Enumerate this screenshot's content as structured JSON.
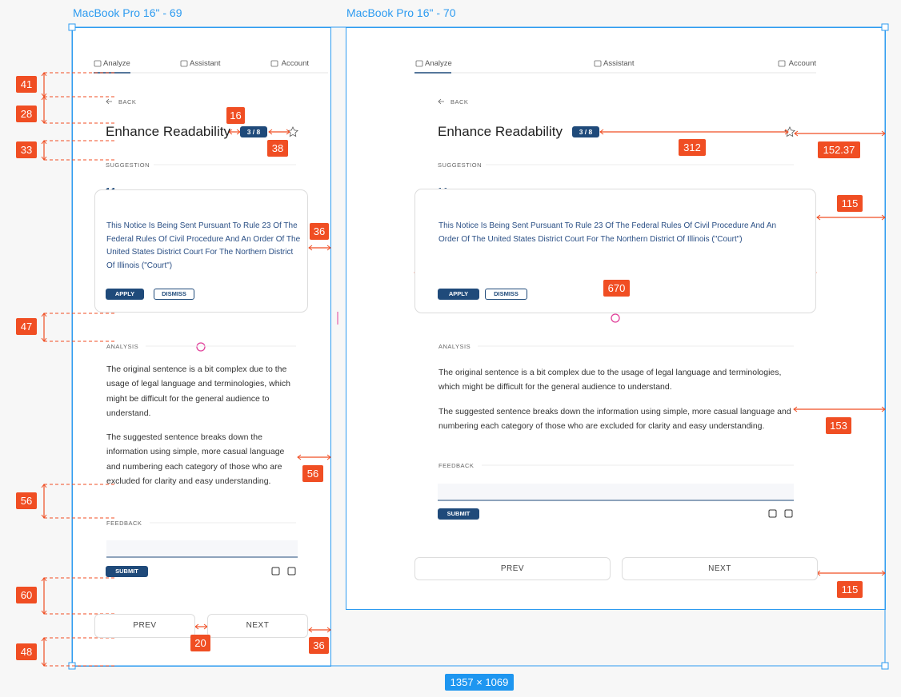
{
  "frames": [
    {
      "label": "MacBook Pro 16\" - 69"
    },
    {
      "label": "MacBook Pro 16\" - 70"
    }
  ],
  "screen": {
    "tabs": [
      "Analyze",
      "Assistant",
      "Account"
    ],
    "back": "BACK",
    "title": "Enhance Readability",
    "badge": "3 / 8",
    "suggestion_label": "SUGGESTION",
    "suggestion_text": "This Notice Is Being Sent Pursuant To Rule 23 Of The Federal Rules Of Civil Procedure And An Order Of The United States District Court For The Northern District Of Illinois (\"Court\")",
    "apply": "APPLY",
    "dismiss": "DISMISS",
    "analysis_label": "ANALYSIS",
    "analysis_paragraphs": [
      "The original sentence is a bit complex due to the usage of legal language and terminologies, which might be difficult for the general audience to understand.",
      "The suggested sentence breaks down the information using simple, more casual language and numbering each category of those who are excluded for clarity and easy understanding."
    ],
    "feedback_label": "FEEDBACK",
    "submit": "SUBMIT",
    "prev": "PREV",
    "next": "NEXT"
  },
  "measurements": [
    41,
    28,
    33,
    16,
    38,
    36,
    47,
    56,
    56,
    60,
    20,
    36,
    48,
    312,
    152.37,
    115,
    670,
    153,
    115
  ],
  "selection_size": "1357 × 1069"
}
